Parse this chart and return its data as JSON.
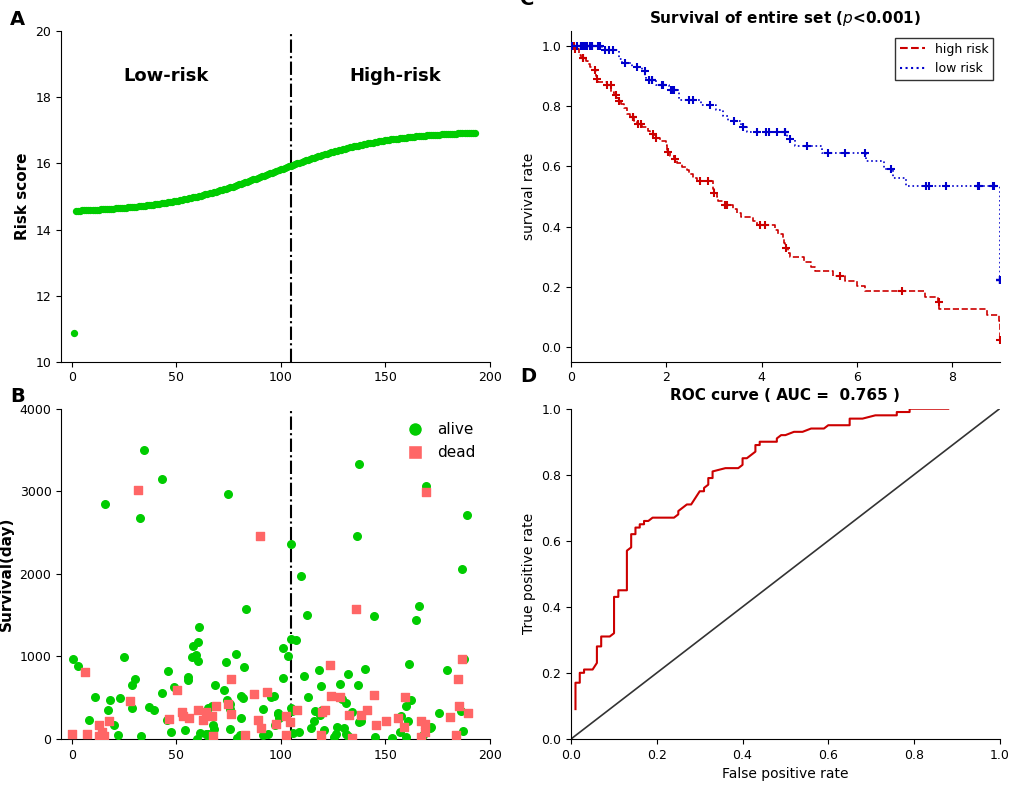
{
  "panel_A": {
    "label": "A",
    "ylabel": "Risk score",
    "ylim": [
      10,
      20
    ],
    "xlim": [
      0,
      200
    ],
    "xticks": [
      0,
      50,
      100,
      150,
      200
    ],
    "yticks": [
      10,
      12,
      14,
      16,
      18,
      20
    ],
    "vline_x": 105,
    "low_risk_label": "Low-risk",
    "high_risk_label": "High-risk",
    "dot_color": "#00cc00",
    "dot_size": 18
  },
  "panel_B": {
    "label": "B",
    "ylabel": "Survival(day)",
    "ylim": [
      0,
      4000
    ],
    "xlim": [
      0,
      200
    ],
    "xticks": [
      0,
      50,
      100,
      150,
      200
    ],
    "yticks": [
      0,
      1000,
      2000,
      3000,
      4000
    ],
    "vline_x": 105,
    "alive_color": "#00cc00",
    "dead_color": "#ff6666",
    "alive_label": "alive",
    "dead_label": "dead"
  },
  "panel_C": {
    "label": "C",
    "title": "Survival of entire set (",
    "title_pval": "p<0.001",
    "title_suffix": ")",
    "ylabel": "survival rate",
    "ylim": [
      -0.05,
      1.05
    ],
    "xlim": [
      0,
      9
    ],
    "xticks": [
      0,
      2,
      4,
      6,
      8
    ],
    "yticks": [
      0.0,
      0.2,
      0.4,
      0.6,
      0.8,
      1.0
    ],
    "high_risk_color": "#cc0000",
    "low_risk_color": "#0000cc",
    "high_risk_label": "high risk",
    "low_risk_label": "low risk"
  },
  "panel_D": {
    "label": "D",
    "title": "ROC curve ( AUC =  0.765 )",
    "xlabel": "False positive rate",
    "ylabel": "True positive rate",
    "ylim": [
      0,
      1.0
    ],
    "xlim": [
      0,
      1.0
    ],
    "xticks": [
      0.0,
      0.2,
      0.4,
      0.6,
      0.8,
      1.0
    ],
    "yticks": [
      0.0,
      0.2,
      0.4,
      0.6,
      0.8,
      1.0
    ],
    "curve_color": "#cc0000",
    "diag_color": "#333333"
  }
}
